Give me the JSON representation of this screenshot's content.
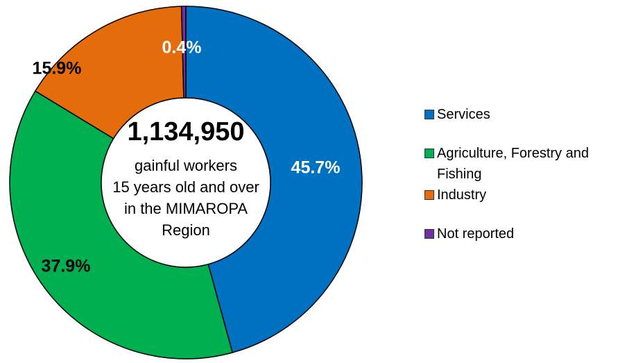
{
  "chart_data": {
    "type": "donut",
    "center_value": "1,134,950",
    "center_label": [
      "gainful workers",
      "15 years old and over",
      "in the MIMAROPA",
      "Region"
    ],
    "categories": [
      "Services",
      "Agriculture, Forestry and Fishing",
      "Industry",
      "Not reported"
    ],
    "values": [
      45.7,
      37.9,
      15.9,
      0.4
    ],
    "value_labels": [
      "45.7%",
      "37.9%",
      "15.9%",
      "0.4%"
    ],
    "colors": [
      "#0070c0",
      "#00b050",
      "#e46c0a",
      "#7030a0"
    ],
    "legend": "right"
  }
}
